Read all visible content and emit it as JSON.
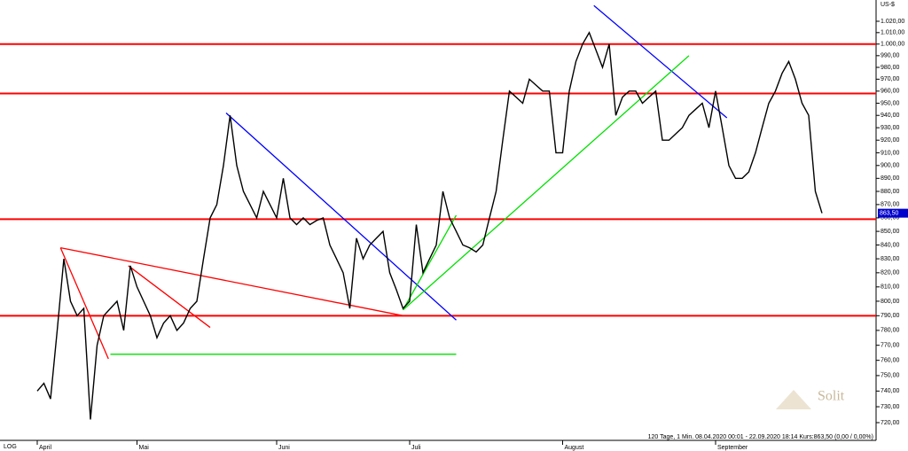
{
  "chart_data": {
    "type": "line",
    "axis_unit": "US-$",
    "scale_label": "LOG",
    "log_scale": true,
    "watermark": "Solit",
    "info": "120 Tage, 1 Min. 08.04.2020 00:01 - 22.09.2020 18:14 Kurs:863,50 (0,00 / 0,00%)",
    "categories": [
      "April",
      null,
      null,
      null,
      null,
      null,
      null,
      null,
      null,
      null,
      null,
      null,
      null,
      null,
      null,
      "Mai",
      null,
      null,
      null,
      null,
      null,
      null,
      null,
      null,
      null,
      null,
      null,
      null,
      null,
      null,
      null,
      null,
      null,
      null,
      null,
      null,
      "Juni",
      null,
      null,
      null,
      null,
      null,
      null,
      null,
      null,
      null,
      null,
      null,
      null,
      null,
      null,
      null,
      null,
      null,
      null,
      null,
      "Juli",
      null,
      null,
      null,
      null,
      null,
      null,
      null,
      null,
      null,
      null,
      null,
      null,
      null,
      null,
      null,
      null,
      null,
      null,
      null,
      null,
      null,
      null,
      "August",
      null,
      null,
      null,
      null,
      null,
      null,
      null,
      null,
      null,
      null,
      null,
      null,
      null,
      null,
      null,
      null,
      null,
      null,
      null,
      null,
      null,
      null,
      "September",
      null,
      null,
      null,
      null,
      null,
      null,
      null,
      null,
      null,
      null,
      null,
      null,
      null,
      null,
      null,
      null
    ],
    "series": [
      {
        "color": "#000000",
        "values": [
          740,
          745,
          735,
          780,
          830,
          800,
          790,
          795,
          722,
          770,
          790,
          795,
          800,
          780,
          825,
          810,
          800,
          790,
          775,
          785,
          790,
          780,
          785,
          795,
          800,
          830,
          860,
          870,
          900,
          940,
          900,
          880,
          870,
          860,
          880,
          870,
          860,
          890,
          860,
          855,
          860,
          855,
          858,
          860,
          840,
          830,
          820,
          795,
          845,
          830,
          840,
          845,
          850,
          820,
          808,
          795,
          800,
          855,
          820,
          830,
          840,
          880,
          860,
          850,
          840,
          838,
          835,
          840,
          860,
          880,
          920,
          960,
          955,
          950,
          970,
          965,
          960,
          960,
          910,
          910,
          960,
          985,
          1000,
          1010,
          995,
          980,
          1000,
          940,
          955,
          960,
          960,
          950,
          955,
          960,
          920,
          920,
          925,
          930,
          940,
          945,
          950,
          930,
          960,
          930,
          900,
          890,
          890,
          895,
          910,
          930,
          950,
          960,
          975,
          985,
          970,
          950,
          940,
          880,
          863.5
        ],
        "last_label": "863,50"
      }
    ],
    "levels": [
      1000,
      958,
      859,
      790
    ],
    "level_color": "#ff0000",
    "trend_lines": [
      {
        "color": "#ff0000",
        "x": [
          3.5,
          10.7
        ],
        "y": [
          838,
          761
        ]
      },
      {
        "color": "#ff0000",
        "x": [
          13.7,
          26
        ],
        "y": [
          825,
          782
        ]
      },
      {
        "color": "#ff0000",
        "x": [
          3.5,
          55
        ],
        "y": [
          838,
          790
        ]
      },
      {
        "color": "#0000ff",
        "x": [
          28.4,
          63
        ],
        "y": [
          942,
          787
        ]
      },
      {
        "color": "#0000ff",
        "x": [
          83.7,
          103.7
        ],
        "y": [
          1034,
          938
        ]
      },
      {
        "color": "#00e000",
        "x": [
          11,
          63
        ],
        "y": [
          764,
          764
        ]
      },
      {
        "color": "#00e000",
        "x": [
          55,
          98
        ],
        "y": [
          794,
          990
        ]
      },
      {
        "color": "#00e000",
        "x": [
          55,
          63
        ],
        "y": [
          794,
          862
        ]
      }
    ],
    "ylim": [
      709,
      1039
    ],
    "yticks": [
      {
        "value": 720,
        "label": "720,00"
      },
      {
        "value": 730,
        "label": "730,00"
      },
      {
        "value": 740,
        "label": "740,00"
      },
      {
        "value": 750,
        "label": "750,00"
      },
      {
        "value": 760,
        "label": "760,00"
      },
      {
        "value": 770,
        "label": "770,00"
      },
      {
        "value": 780,
        "label": "780,00"
      },
      {
        "value": 790,
        "label": "790,00"
      },
      {
        "value": 800,
        "label": "800,00"
      },
      {
        "value": 810,
        "label": "810,00"
      },
      {
        "value": 820,
        "label": "820,00"
      },
      {
        "value": 830,
        "label": "830,00"
      },
      {
        "value": 840,
        "label": "840,00"
      },
      {
        "value": 850,
        "label": "850,00"
      },
      {
        "value": 860,
        "label": "860,00"
      },
      {
        "value": 870,
        "label": "870,00"
      },
      {
        "value": 880,
        "label": "880,00"
      },
      {
        "value": 890,
        "label": "890,00"
      },
      {
        "value": 900,
        "label": "900,00"
      },
      {
        "value": 910,
        "label": "910,00"
      },
      {
        "value": 920,
        "label": "920,00"
      },
      {
        "value": 930,
        "label": "930,00"
      },
      {
        "value": 940,
        "label": "940,00"
      },
      {
        "value": 950,
        "label": "950,00"
      },
      {
        "value": 960,
        "label": "960,00"
      },
      {
        "value": 970,
        "label": "970,00"
      },
      {
        "value": 980,
        "label": "980,00"
      },
      {
        "value": 990,
        "label": "990,00"
      },
      {
        "value": 1000,
        "label": "1.000,00"
      },
      {
        "value": 1010,
        "label": "1.010,00"
      },
      {
        "value": 1020,
        "label": "1.020,00"
      }
    ]
  }
}
